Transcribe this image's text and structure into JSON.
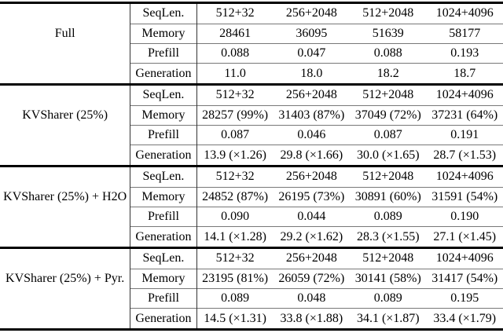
{
  "table": {
    "colors": {
      "rule_heavy": "#000000",
      "rule_light": "#787878",
      "text": "#000000",
      "background": "#ffffff"
    },
    "sections": [
      {
        "name": "Full",
        "rows": [
          {
            "label": "SeqLen.",
            "values": [
              "512+32",
              "256+2048",
              "512+2048",
              "1024+4096"
            ]
          },
          {
            "label": "Memory",
            "values": [
              "28461",
              "36095",
              "51639",
              "58177"
            ]
          },
          {
            "label": "Prefill",
            "values": [
              "0.088",
              "0.047",
              "0.088",
              "0.193"
            ]
          },
          {
            "label": "Generation",
            "values": [
              "11.0",
              "18.0",
              "18.2",
              "18.7"
            ]
          }
        ]
      },
      {
        "name": "KVSharer (25%)",
        "rows": [
          {
            "label": "SeqLen.",
            "values": [
              "512+32",
              "256+2048",
              "512+2048",
              "1024+4096"
            ]
          },
          {
            "label": "Memory",
            "values": [
              "28257 (99%)",
              "31403 (87%)",
              "37049 (72%)",
              "37231 (64%)"
            ]
          },
          {
            "label": "Prefill",
            "values": [
              "0.087",
              "0.046",
              "0.087",
              "0.191"
            ]
          },
          {
            "label": "Generation",
            "values": [
              "13.9 (×1.26)",
              "29.8 (×1.66)",
              "30.0 (×1.65)",
              "28.7 (×1.53)"
            ]
          }
        ]
      },
      {
        "name": "KVSharer (25%) + H2O",
        "rows": [
          {
            "label": "SeqLen.",
            "values": [
              "512+32",
              "256+2048",
              "512+2048",
              "1024+4096"
            ]
          },
          {
            "label": "Memory",
            "values": [
              "24852 (87%)",
              "26195 (73%)",
              "30891 (60%)",
              "31591 (54%)"
            ]
          },
          {
            "label": "Prefill",
            "values": [
              "0.090",
              "0.044",
              "0.089",
              "0.190"
            ]
          },
          {
            "label": "Generation",
            "values": [
              "14.1 (×1.28)",
              "29.2 (×1.62)",
              "28.3 (×1.55)",
              "27.1 (×1.45)"
            ]
          }
        ]
      },
      {
        "name": "KVSharer (25%) + Pyr.",
        "rows": [
          {
            "label": "SeqLen.",
            "values": [
              "512+32",
              "256+2048",
              "512+2048",
              "1024+4096"
            ]
          },
          {
            "label": "Memory",
            "values": [
              "23195 (81%)",
              "26059 (72%)",
              "30141 (58%)",
              "31417 (54%)"
            ]
          },
          {
            "label": "Prefill",
            "values": [
              "0.089",
              "0.048",
              "0.089",
              "0.195"
            ]
          },
          {
            "label": "Generation",
            "values": [
              "14.5 (×1.31)",
              "33.8 (×1.88)",
              "34.1 (×1.87)",
              "33.4 (×1.79)"
            ]
          }
        ]
      }
    ]
  }
}
